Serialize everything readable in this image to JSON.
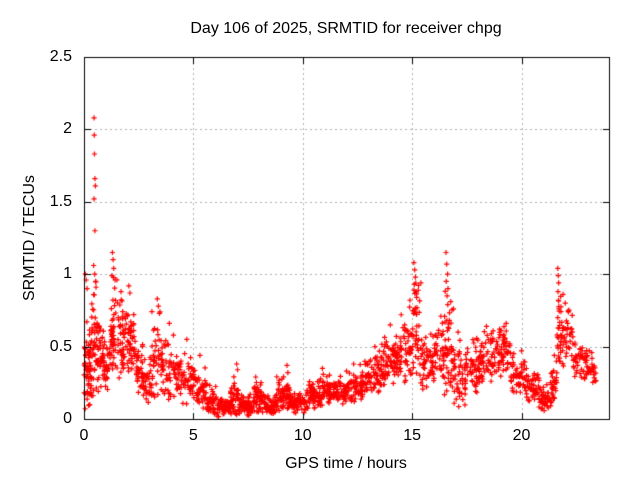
{
  "chart_data": {
    "type": "scatter",
    "title": "Day 106 of 2025, SRMTID for receiver chpg",
    "xlabel": "GPS time / hours",
    "ylabel": "SRMTID / TECUs",
    "xlim": [
      0,
      24
    ],
    "ylim": [
      0,
      2.5
    ],
    "xticks": [
      0,
      5,
      10,
      15,
      20
    ],
    "xtick_labels": [
      "0",
      "5",
      "10",
      "15",
      "20"
    ],
    "yticks": [
      0,
      0.5,
      1,
      1.5,
      2,
      2.5
    ],
    "ytick_labels": [
      "0",
      "0.5",
      "1",
      "1.5",
      "2",
      "2.5"
    ],
    "grid": true,
    "grid_style": "dashed",
    "legend": "none",
    "marker": "plus",
    "marker_size_px": 6,
    "colors": {
      "background": "#ffffff",
      "axis": "#000000",
      "text": "#000000",
      "grid": "#b0b0b0",
      "series": "#ff0000"
    },
    "render_seed": 7,
    "note": "Dense scatter (~2000 pts). Data encoded as explicit notable points plus per-interval envelopes [t_start,t_end,y_min,y_max,count] read from the plot.",
    "series": [
      {
        "name": "SRMTID",
        "color": "#ff0000",
        "outlier_points": [
          [
            0.06,
            1.0
          ],
          [
            0.1,
            0.96
          ],
          [
            0.14,
            0.9
          ],
          [
            0.46,
            2.08
          ],
          [
            0.47,
            1.96
          ],
          [
            0.48,
            1.83
          ],
          [
            0.5,
            1.66
          ],
          [
            0.52,
            1.61
          ],
          [
            0.46,
            1.52
          ],
          [
            0.5,
            1.3
          ],
          [
            0.44,
            1.06
          ],
          [
            0.49,
            1.0
          ],
          [
            0.53,
            0.95
          ],
          [
            0.55,
            0.91
          ],
          [
            1.3,
            1.15
          ],
          [
            1.33,
            1.1
          ],
          [
            1.36,
            1.04
          ],
          [
            1.28,
            0.99
          ],
          [
            1.42,
            0.96
          ],
          [
            2.05,
            0.92
          ],
          [
            2.1,
            0.87
          ],
          [
            3.35,
            0.83
          ],
          [
            3.4,
            0.78
          ],
          [
            3.45,
            0.73
          ],
          [
            3.9,
            0.66
          ],
          [
            4.7,
            0.55
          ],
          [
            5.3,
            0.44
          ],
          [
            6.98,
            0.38
          ],
          [
            7.02,
            0.34
          ],
          [
            7.85,
            0.29
          ],
          [
            9.28,
            0.37
          ],
          [
            9.32,
            0.32
          ],
          [
            10.9,
            0.35
          ],
          [
            12.0,
            0.33
          ],
          [
            13.3,
            0.5
          ],
          [
            14.0,
            0.65
          ],
          [
            14.5,
            0.72
          ],
          [
            14.9,
            0.82
          ],
          [
            15.08,
            1.08
          ],
          [
            15.12,
            1.03
          ],
          [
            15.15,
            0.98
          ],
          [
            15.1,
            0.93
          ],
          [
            15.18,
            0.88
          ],
          [
            15.21,
            0.84
          ],
          [
            15.4,
            0.94
          ],
          [
            16.55,
            1.15
          ],
          [
            16.58,
            1.07
          ],
          [
            16.62,
            1.0
          ],
          [
            16.56,
            0.95
          ],
          [
            16.64,
            0.9
          ],
          [
            16.6,
            0.85
          ],
          [
            16.63,
            0.79
          ],
          [
            17.1,
            0.6
          ],
          [
            18.4,
            0.64
          ],
          [
            19.0,
            0.62
          ],
          [
            19.3,
            0.66
          ],
          [
            20.0,
            0.47
          ],
          [
            21.5,
            0.44
          ],
          [
            21.66,
            1.04
          ],
          [
            21.68,
            0.99
          ],
          [
            21.7,
            0.94
          ],
          [
            21.67,
            0.88
          ],
          [
            21.69,
            0.82
          ],
          [
            21.71,
            0.76
          ],
          [
            21.66,
            0.7
          ],
          [
            21.68,
            0.63
          ],
          [
            21.7,
            0.56
          ],
          [
            21.67,
            0.49
          ],
          [
            21.69,
            0.42
          ],
          [
            21.9,
            0.86
          ],
          [
            22.0,
            0.8
          ],
          [
            22.15,
            0.74
          ],
          [
            22.3,
            0.62
          ],
          [
            23.1,
            0.47
          ]
        ],
        "envelope_bins": {
          "columns": [
            "t_start",
            "t_end",
            "y_min",
            "y_max",
            "count"
          ],
          "rows": [
            [
              0.0,
              0.15,
              0.06,
              0.78,
              24
            ],
            [
              0.15,
              0.35,
              0.05,
              0.62,
              40
            ],
            [
              0.35,
              0.6,
              0.15,
              1.02,
              36
            ],
            [
              0.6,
              0.9,
              0.18,
              0.74,
              40
            ],
            [
              0.9,
              1.2,
              0.15,
              0.64,
              36
            ],
            [
              1.2,
              1.6,
              0.28,
              1.0,
              48
            ],
            [
              1.6,
              2.0,
              0.28,
              0.88,
              48
            ],
            [
              2.0,
              2.35,
              0.22,
              0.86,
              42
            ],
            [
              2.35,
              2.7,
              0.15,
              0.56,
              36
            ],
            [
              2.7,
              3.1,
              0.1,
              0.44,
              36
            ],
            [
              3.1,
              3.6,
              0.12,
              0.78,
              44
            ],
            [
              3.6,
              4.1,
              0.12,
              0.62,
              40
            ],
            [
              4.1,
              4.6,
              0.1,
              0.52,
              38
            ],
            [
              4.6,
              5.1,
              0.08,
              0.5,
              38
            ],
            [
              5.1,
              5.6,
              0.06,
              0.4,
              38
            ],
            [
              5.6,
              6.1,
              0.02,
              0.24,
              50
            ],
            [
              6.1,
              6.7,
              0.01,
              0.15,
              60
            ],
            [
              6.7,
              7.1,
              0.02,
              0.3,
              40
            ],
            [
              7.1,
              7.7,
              0.02,
              0.18,
              60
            ],
            [
              7.7,
              8.3,
              0.04,
              0.26,
              60
            ],
            [
              8.3,
              8.8,
              0.02,
              0.16,
              50
            ],
            [
              8.8,
              9.4,
              0.05,
              0.3,
              60
            ],
            [
              9.4,
              10.2,
              0.04,
              0.22,
              75
            ],
            [
              10.2,
              10.8,
              0.07,
              0.28,
              55
            ],
            [
              10.8,
              11.4,
              0.09,
              0.33,
              55
            ],
            [
              11.4,
              12.1,
              0.1,
              0.31,
              65
            ],
            [
              12.1,
              12.8,
              0.12,
              0.38,
              62
            ],
            [
              12.8,
              13.5,
              0.17,
              0.47,
              62
            ],
            [
              13.5,
              14.2,
              0.22,
              0.62,
              64
            ],
            [
              14.2,
              14.75,
              0.25,
              0.7,
              52
            ],
            [
              14.75,
              15.05,
              0.28,
              0.8,
              28
            ],
            [
              15.05,
              15.35,
              0.3,
              1.02,
              34
            ],
            [
              15.35,
              16.0,
              0.2,
              0.62,
              56
            ],
            [
              16.0,
              16.45,
              0.22,
              0.72,
              40
            ],
            [
              16.45,
              16.9,
              0.12,
              0.98,
              50
            ],
            [
              16.9,
              17.45,
              0.08,
              0.56,
              48
            ],
            [
              17.45,
              18.1,
              0.18,
              0.58,
              56
            ],
            [
              18.1,
              18.8,
              0.24,
              0.62,
              58
            ],
            [
              18.8,
              19.5,
              0.24,
              0.66,
              58
            ],
            [
              19.5,
              20.2,
              0.16,
              0.46,
              54
            ],
            [
              20.2,
              20.8,
              0.1,
              0.36,
              50
            ],
            [
              20.8,
              21.35,
              0.05,
              0.26,
              46
            ],
            [
              21.35,
              21.62,
              0.1,
              0.42,
              30
            ],
            [
              21.62,
              21.85,
              0.3,
              1.0,
              26
            ],
            [
              21.85,
              22.35,
              0.35,
              0.8,
              34
            ],
            [
              22.35,
              22.95,
              0.25,
              0.6,
              40
            ],
            [
              22.95,
              23.42,
              0.25,
              0.48,
              32
            ]
          ]
        }
      }
    ]
  }
}
